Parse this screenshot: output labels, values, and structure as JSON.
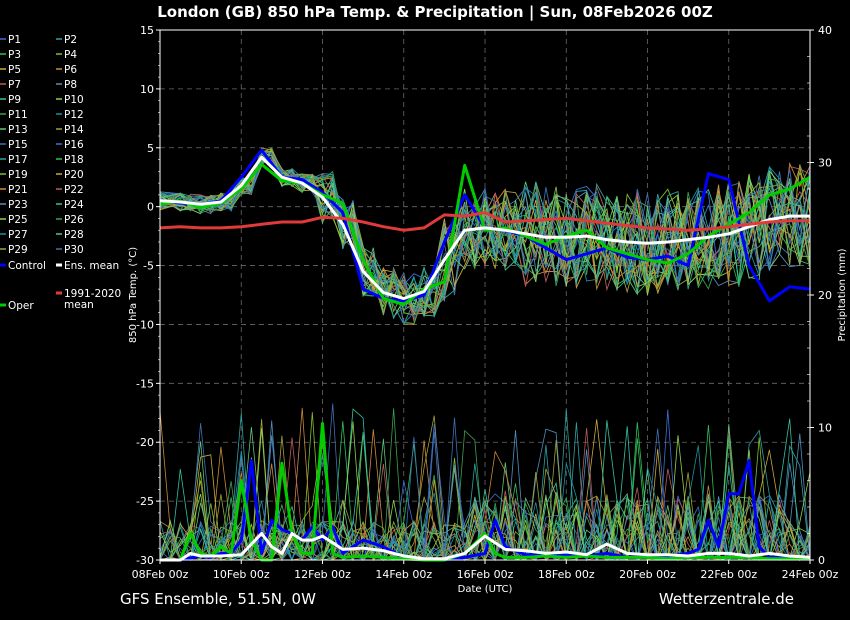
{
  "colors": {
    "background": "#000000",
    "control": "#0000ff",
    "oper": "#00cc00",
    "ens_mean": "#ffffff",
    "clim_mean": "#e03a3a",
    "members": [
      "#3b6fd6",
      "#2fa0a0",
      "#2fbf58",
      "#7fbf2f",
      "#c9a83a",
      "#c88a3a",
      "#b85a5a",
      "#4f8fbf",
      "#35c0a0",
      "#8fd04f",
      "#3aa04f",
      "#1f8f9f",
      "#5fc07f",
      "#a0a03a",
      "#3f70b0"
    ]
  },
  "chart_data": {
    "type": "line",
    "title": "London  (GB)  850 hPa Temp. & Precipitation | Sun, 08Feb2026 00Z",
    "xlabel": "Date (UTC)",
    "ylabel": "850 hPa Temp. (°C)",
    "y2label": "Precipitation (mm)",
    "xlim": [
      0,
      16
    ],
    "ylim": [
      -30,
      15
    ],
    "y2lim": [
      0,
      40
    ],
    "x_unit": "days from 08Feb2026 00z",
    "x_ticks": [
      {
        "x": 0,
        "label": "08Feb 00z"
      },
      {
        "x": 2,
        "label": "10Feb 00z"
      },
      {
        "x": 4,
        "label": "12Feb 00z"
      },
      {
        "x": 6,
        "label": "14Feb 00z"
      },
      {
        "x": 8,
        "label": "16Feb 00z"
      },
      {
        "x": 10,
        "label": "18Feb 00z"
      },
      {
        "x": 12,
        "label": "20Feb 00z"
      },
      {
        "x": 14,
        "label": "22Feb 00z"
      },
      {
        "x": 16,
        "label": "24Feb 00z"
      }
    ],
    "y_ticks": [
      15,
      10,
      5,
      0,
      -5,
      -10,
      -15,
      -20,
      -25,
      -30
    ],
    "y2_ticks": [
      40,
      30,
      20,
      10,
      0
    ],
    "grid": true,
    "legend": {
      "placement": "left",
      "entries": [
        "P1",
        "P2",
        "P3",
        "P4",
        "P5",
        "P6",
        "P7",
        "P8",
        "P9",
        "P10",
        "P11",
        "P12",
        "P13",
        "P14",
        "P15",
        "P16",
        "P17",
        "P18",
        "P19",
        "P20",
        "P21",
        "P22",
        "P23",
        "P24",
        "P25",
        "P26",
        "P27",
        "P28",
        "P29",
        "P30",
        "Control",
        "Ens. mean",
        "",
        "1991-2020 mean",
        "Oper"
      ]
    },
    "temp_series": [
      {
        "name": "Control",
        "x": [
          0,
          0.5,
          1,
          1.5,
          2,
          2.5,
          3,
          3.5,
          4,
          4.5,
          5,
          5.5,
          6,
          6.5,
          7,
          7.5,
          8,
          8.5,
          9,
          9.5,
          10,
          10.5,
          11,
          11.5,
          12,
          12.5,
          13,
          13.5,
          14,
          14.5,
          15,
          15.5,
          16
        ],
        "values": [
          0.5,
          0.3,
          0.2,
          0.5,
          2.5,
          4.8,
          2.5,
          2.3,
          1.2,
          -0.5,
          -7,
          -7.8,
          -8,
          -7.5,
          -3,
          1,
          -1.8,
          -2,
          -2.5,
          -3.5,
          -4.5,
          -4,
          -3.5,
          -4.3,
          -4.5,
          -4.2,
          -5,
          2.8,
          2.3,
          -5,
          -8,
          -6.8,
          -7
        ]
      },
      {
        "name": "Oper",
        "x": [
          0,
          0.5,
          1,
          1.5,
          2,
          2.5,
          3,
          3.5,
          4,
          4.5,
          5,
          5.5,
          6,
          6.5,
          7,
          7.5,
          8,
          8.5,
          9,
          9.5,
          10,
          10.5,
          11,
          11.5,
          12,
          12.5,
          13,
          13.5,
          14,
          14.5,
          15,
          15.5,
          16
        ],
        "values": [
          0.2,
          0.5,
          -0.1,
          0.3,
          1.5,
          3.6,
          2.2,
          2,
          1,
          0.3,
          -4.5,
          -7.8,
          -8.3,
          -7,
          -6.4,
          3.5,
          -2,
          -1.8,
          -2.5,
          -3.2,
          -2.5,
          -2,
          -3.5,
          -4,
          -4.5,
          -4.8,
          -4,
          -2.5,
          -1.5,
          -0.5,
          1,
          1.5,
          2.5
        ]
      },
      {
        "name": "Ens. mean",
        "x": [
          0,
          0.5,
          1,
          1.5,
          2,
          2.5,
          3,
          3.5,
          4,
          4.5,
          5,
          5.5,
          6,
          6.5,
          7,
          7.5,
          8,
          8.5,
          9,
          9.5,
          10,
          10.5,
          11,
          11.5,
          12,
          12.5,
          13,
          13.5,
          14,
          14.5,
          15,
          15.5,
          16
        ],
        "values": [
          0.5,
          0.4,
          0.2,
          0.4,
          1.8,
          4.2,
          2.5,
          2,
          0.8,
          -1.5,
          -5.5,
          -7.3,
          -7.8,
          -7.2,
          -4.5,
          -2,
          -1.8,
          -2,
          -2.3,
          -2.6,
          -2.6,
          -2.5,
          -2.8,
          -3,
          -3.1,
          -3,
          -2.8,
          -2.6,
          -2.3,
          -1.7,
          -1.1,
          -0.8,
          -0.8
        ]
      },
      {
        "name": "1991-2020 mean",
        "x": [
          0,
          0.5,
          1,
          1.5,
          2,
          2.5,
          3,
          3.5,
          4,
          4.5,
          5,
          5.5,
          6,
          6.5,
          7,
          7.5,
          8,
          8.5,
          9,
          9.5,
          10,
          10.5,
          11,
          11.5,
          12,
          12.5,
          13,
          13.5,
          14,
          14.5,
          15,
          15.5,
          16
        ],
        "values": [
          -1.8,
          -1.7,
          -1.8,
          -1.8,
          -1.7,
          -1.5,
          -1.3,
          -1.3,
          -0.9,
          -1,
          -1.3,
          -1.7,
          -2,
          -1.8,
          -0.7,
          -0.8,
          -0.5,
          -1.3,
          -1.2,
          -1.1,
          -1.0,
          -1.2,
          -1.4,
          -1.6,
          -1.8,
          -1.9,
          -2.0,
          -1.9,
          -1.7,
          -1.5,
          -1.3,
          -1.2,
          -1.2
        ]
      }
    ],
    "precip_series": [
      {
        "name": "Control",
        "x": [
          0,
          0.5,
          1,
          1.25,
          1.5,
          1.75,
          2,
          2.25,
          2.5,
          2.75,
          3,
          3.25,
          3.5,
          3.75,
          4,
          4.25,
          4.5,
          5,
          5.5,
          6,
          6.5,
          7,
          7.5,
          8,
          8.25,
          8.5,
          9,
          9.5,
          10,
          10.5,
          11,
          11.5,
          12,
          12.5,
          13,
          13.25,
          13.5,
          13.75,
          14,
          14.25,
          14.5,
          14.75,
          15,
          15.5,
          16
        ],
        "values": [
          0,
          0,
          0.3,
          0.2,
          0.5,
          0.5,
          1.5,
          7.5,
          0.5,
          3,
          2.3,
          2,
          1.5,
          2.5,
          1.5,
          2.5,
          0.5,
          1.5,
          1,
          0.2,
          0.1,
          0,
          0.2,
          0.5,
          3,
          1,
          0.4,
          0.4,
          0.4,
          0.3,
          0.5,
          0.2,
          0.4,
          0.3,
          0.5,
          0.8,
          3,
          1,
          5,
          5,
          7.5,
          1,
          0.2,
          0.3,
          0.1
        ]
      },
      {
        "name": "Oper",
        "x": [
          0,
          0.5,
          0.75,
          1,
          1.25,
          1.5,
          1.75,
          2,
          2.25,
          2.5,
          2.75,
          3,
          3.25,
          3.5,
          3.75,
          4,
          4.25,
          4.5,
          5,
          5.5,
          6,
          6.5,
          7,
          7.5,
          8,
          8.25,
          8.5,
          9,
          9.5,
          10,
          10.5,
          11,
          11.5,
          12,
          12.5,
          13,
          13.5,
          14,
          14.5,
          15,
          15.5,
          16
        ],
        "values": [
          0,
          0,
          2,
          0.5,
          0.3,
          1,
          0.5,
          6,
          1.5,
          0,
          0,
          7.3,
          2,
          0.5,
          0.5,
          10.3,
          0.5,
          0.2,
          0.3,
          0.2,
          0.1,
          0,
          0,
          0.5,
          2,
          0.5,
          0.2,
          0.2,
          0.3,
          0.2,
          0.3,
          0.2,
          0.2,
          0.2,
          0.1,
          0.2,
          0.2,
          0.2,
          0.2,
          0.1,
          0.1,
          0.1
        ]
      },
      {
        "name": "Ens. mean",
        "x": [
          0,
          0.5,
          0.75,
          1,
          1.5,
          2,
          2.5,
          2.75,
          3,
          3.25,
          3.5,
          3.75,
          4,
          4.5,
          5,
          5.5,
          6,
          6.5,
          7,
          7.5,
          8,
          8.5,
          9,
          9.5,
          10,
          10.5,
          11,
          11.5,
          12,
          12.5,
          13,
          13.5,
          14,
          14.5,
          15,
          15.5,
          16
        ],
        "values": [
          0,
          0,
          0.5,
          0.3,
          0.3,
          0.4,
          2,
          1,
          0.5,
          2,
          1.5,
          1.5,
          1.8,
          0.8,
          0.9,
          0.7,
          0.3,
          0.1,
          0.1,
          0.5,
          1.8,
          0.8,
          0.7,
          0.5,
          0.6,
          0.4,
          1.2,
          0.5,
          0.4,
          0.4,
          0.3,
          0.5,
          0.5,
          0.3,
          0.5,
          0.3,
          0.2
        ]
      }
    ]
  },
  "footer": {
    "left": "GFS Ensemble, 51.5N, 0W",
    "right": "Wetterzentrale.de"
  }
}
